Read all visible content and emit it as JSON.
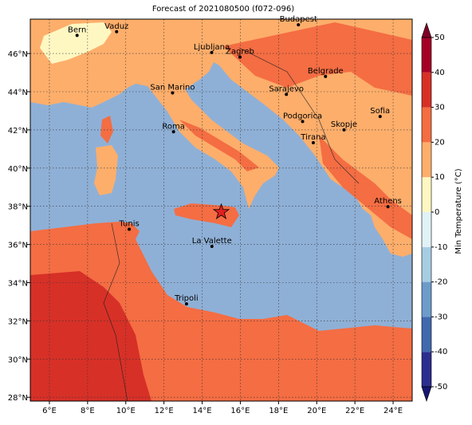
{
  "title": "Forecast of 2021080500 (f072-096)",
  "map": {
    "lon_range": [
      5,
      25
    ],
    "lat_range": [
      27.8,
      47.8
    ],
    "xticks": [
      {
        "value": 6,
        "label": "6°E"
      },
      {
        "value": 8,
        "label": "8°E"
      },
      {
        "value": 10,
        "label": "10°E"
      },
      {
        "value": 12,
        "label": "12°E"
      },
      {
        "value": 14,
        "label": "14°E"
      },
      {
        "value": 16,
        "label": "16°E"
      },
      {
        "value": 18,
        "label": "18°E"
      },
      {
        "value": 20,
        "label": "20°E"
      },
      {
        "value": 22,
        "label": "22°E"
      },
      {
        "value": 24,
        "label": "24°E"
      }
    ],
    "yticks": [
      {
        "value": 28,
        "label": "28°N"
      },
      {
        "value": 30,
        "label": "30°N"
      },
      {
        "value": 32,
        "label": "32°N"
      },
      {
        "value": 34,
        "label": "34°N"
      },
      {
        "value": 36,
        "label": "36°N"
      },
      {
        "value": 38,
        "label": "38°N"
      },
      {
        "value": 40,
        "label": "40°N"
      },
      {
        "value": 42,
        "label": "42°N"
      },
      {
        "value": 44,
        "label": "44°N"
      },
      {
        "value": 46,
        "label": "46°N"
      }
    ],
    "cities": [
      {
        "name": "Bern",
        "lon": 7.45,
        "lat": 46.95
      },
      {
        "name": "Vaduz",
        "lon": 9.52,
        "lat": 47.14
      },
      {
        "name": "Budapest",
        "lon": 19.04,
        "lat": 47.5
      },
      {
        "name": "Ljubljana",
        "lon": 14.5,
        "lat": 46.05
      },
      {
        "name": "Zagreb",
        "lon": 15.98,
        "lat": 45.81
      },
      {
        "name": "San Marino",
        "lon": 12.45,
        "lat": 43.94
      },
      {
        "name": "Belgrade",
        "lon": 20.46,
        "lat": 44.8
      },
      {
        "name": "Sarajevo",
        "lon": 18.41,
        "lat": 43.86
      },
      {
        "name": "Sofia",
        "lon": 23.32,
        "lat": 42.7
      },
      {
        "name": "Podgorica",
        "lon": 19.26,
        "lat": 42.44
      },
      {
        "name": "Skopje",
        "lon": 21.43,
        "lat": 42.0
      },
      {
        "name": "Roma",
        "lon": 12.5,
        "lat": 41.9
      },
      {
        "name": "Tirana",
        "lon": 19.82,
        "lat": 41.33
      },
      {
        "name": "Athens",
        "lon": 23.73,
        "lat": 37.98
      },
      {
        "name": "Tunis",
        "lon": 10.18,
        "lat": 36.8
      },
      {
        "name": "La Valette",
        "lon": 14.51,
        "lat": 35.9
      },
      {
        "name": "Tripoli",
        "lon": 13.18,
        "lat": 32.89
      }
    ],
    "marker": {
      "lon": 15.0,
      "lat": 37.7,
      "color": "#e02020"
    }
  },
  "colorbar": {
    "label": "Min Temperature (°C)",
    "levels": [
      -50,
      -40,
      -30,
      -20,
      -10,
      0,
      10,
      20,
      30,
      40,
      50
    ],
    "colors": [
      "#2c2d8e",
      "#4169ae",
      "#6d9ccb",
      "#a7cde3",
      "#e1f2f7",
      "#fff7c2",
      "#fdae6b",
      "#f46d43",
      "#d73027",
      "#a50026"
    ],
    "under_color": "#161673",
    "over_color": "#7f0026",
    "ticks": [
      -50,
      -40,
      -30,
      -20,
      -10,
      0,
      10,
      20,
      30,
      40,
      50
    ]
  }
}
